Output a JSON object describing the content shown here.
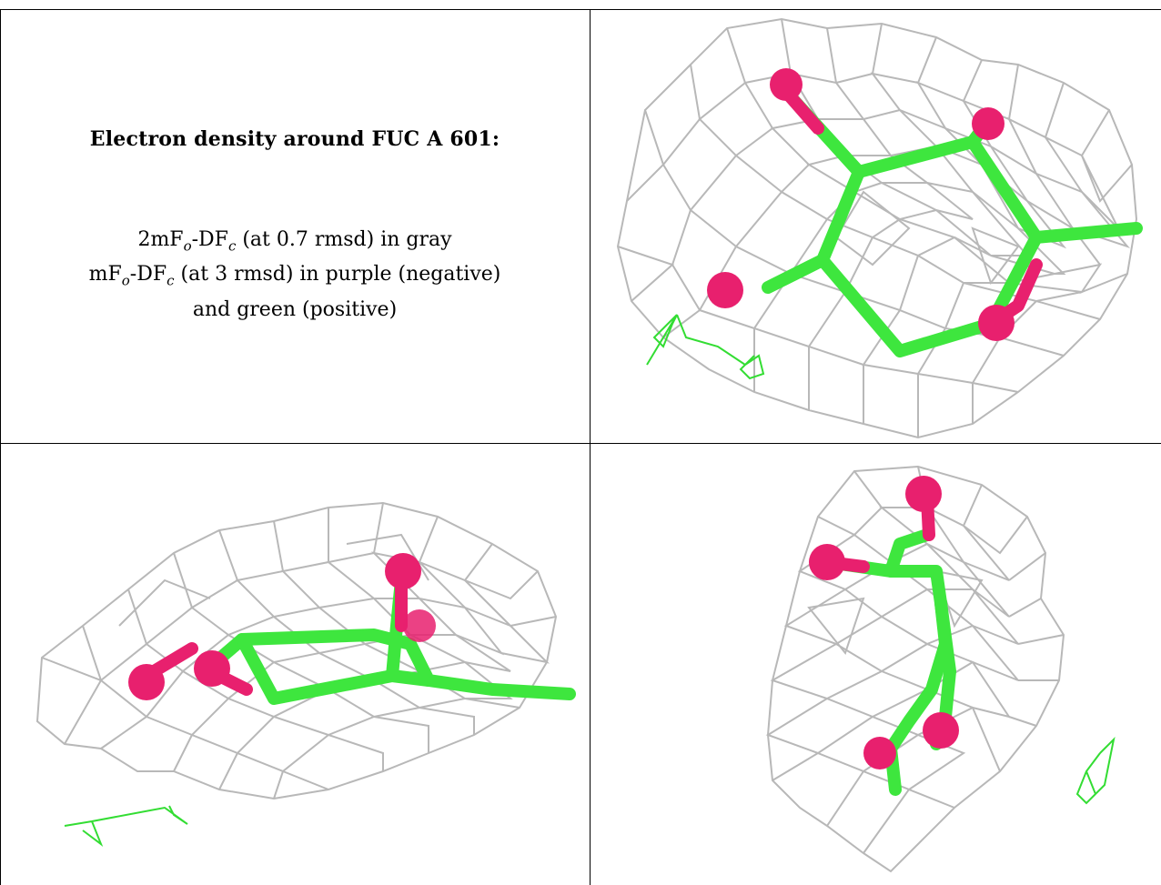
{
  "caption": {
    "title": "Electron density around FUC A 601:",
    "line1": "2mFo-DFc (at 0.7 rmsd) in gray",
    "line2": "mFo-DFc (at 3 rmsd) in purple (negative)",
    "line3": "and green (positive)"
  },
  "colors": {
    "mesh_2fofc": "#b8b8b8",
    "bond_carbon": "#3ee63e",
    "atom_oxygen": "#e8206e",
    "mesh_fofc_positive": "#33dd33",
    "border": "#000000"
  },
  "panels": [
    {
      "view": "top-right"
    },
    {
      "view": "bottom-left"
    },
    {
      "view": "bottom-right"
    }
  ]
}
